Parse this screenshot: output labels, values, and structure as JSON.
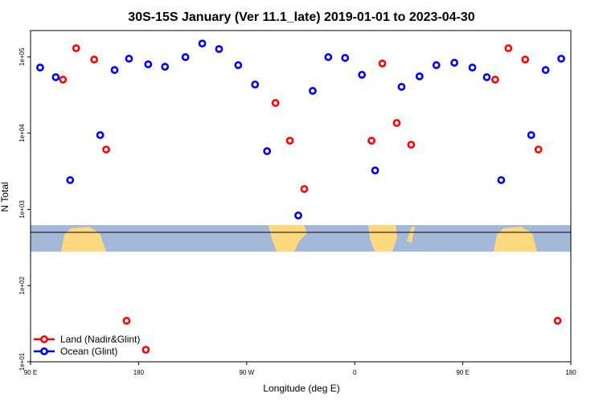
{
  "chart_data": {
    "type": "scatter",
    "title": "30S-15S January (Ver 11.1_late)   2019-01-01 to 2023-04-30",
    "xlabel": "Longitude (deg E)",
    "ylabel": "N Total",
    "log_y": true,
    "legend": "bottom-left",
    "xlim": [
      90,
      540
    ],
    "xticks": [
      {
        "value": 90,
        "label": "90 E"
      },
      180,
      {
        "value": 270,
        "label": "90 W"
      },
      {
        "value": 360,
        "label": "0"
      },
      {
        "value": 450,
        "label": "90 E"
      },
      {
        "value": 540,
        "label": "180"
      }
    ],
    "ylim": [
      10,
      222000
    ],
    "yticks": [
      {
        "value": 10,
        "label": "1e+01"
      },
      {
        "value": 100,
        "label": "1e+02"
      },
      {
        "value": 1000,
        "label": "1e+03"
      },
      {
        "value": 10000,
        "label": "1e+04"
      },
      {
        "value": 100000,
        "label": "1e+05"
      }
    ],
    "series": [
      {
        "name": "Land (Nadir&Glint)",
        "color": "#ff0000",
        "x": [
          117,
          128,
          143,
          153,
          170,
          186,
          294,
          306,
          318,
          374,
          383,
          395,
          407,
          477,
          488,
          502,
          513,
          529
        ],
        "values": [
          50400,
          130000,
          92500,
          6100,
          34.5,
          14.4,
          24900,
          7960,
          1850,
          7960,
          82000,
          13600,
          7050,
          50400,
          130000,
          92500,
          6100,
          34.5
        ]
      },
      {
        "name": "Ocean (Glint)",
        "color": "#0000ee",
        "x": [
          98,
          111,
          123,
          148,
          160,
          172,
          188,
          202,
          219,
          233,
          247,
          263,
          277,
          287,
          313,
          325,
          338,
          352,
          366,
          377,
          399,
          414,
          428,
          443,
          458,
          470,
          482,
          507,
          519,
          532
        ],
        "values": [
          72600,
          54200,
          2420,
          9440,
          67400,
          94900,
          80000,
          74300,
          99500,
          150000,
          127000,
          78000,
          43500,
          5810,
          832,
          35900,
          99500,
          97000,
          58300,
          3240,
          40500,
          55600,
          78000,
          83900,
          72600,
          54200,
          2420,
          9440,
          67400,
          94900
        ]
      }
    ]
  }
}
